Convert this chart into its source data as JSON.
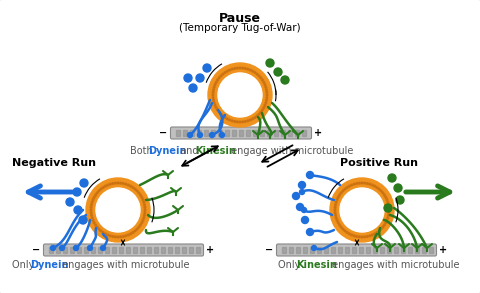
{
  "bg_color": "#ffffff",
  "border_color": "#c0c0c0",
  "orange_color": "#f0921e",
  "orange_dark": "#c97010",
  "dynein_color": "#1e6fdc",
  "kinesin_color": "#2a7a1e",
  "title_top": "Pause",
  "subtitle_top": "(Temporary Tug-of-War)",
  "label_neg": "Negative Run",
  "label_pos": "Positive Run",
  "text_top_pre": "Both ",
  "text_top_dyn": "Dynein",
  "text_top_mid": " and ",
  "text_top_kin": "Kinesin",
  "text_top_suf": " engage with microtubule",
  "text_neg_pre": "Only ",
  "text_neg_dyn": "Dynein",
  "text_neg_suf": " engages with microtubule",
  "text_pos_pre": "Only ",
  "text_pos_kin": "Kinesin",
  "text_pos_suf": " engages with microtubule",
  "fig_width": 4.8,
  "fig_height": 2.93,
  "dpi": 100
}
